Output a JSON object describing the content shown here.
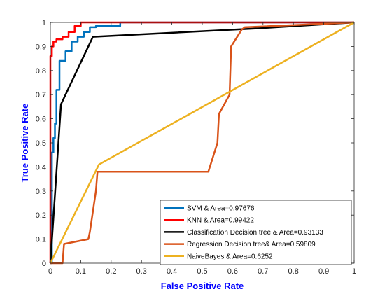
{
  "chart_data": {
    "type": "line",
    "xlabel": "False Positive Rate",
    "ylabel": "True Positive Rate",
    "xlim": [
      0,
      1
    ],
    "ylim": [
      0,
      1
    ],
    "xticks": [
      "0",
      "0.1",
      "0.2",
      "0.3",
      "0.4",
      "0.5",
      "0.6",
      "0.7",
      "0.8",
      "0.9",
      "1"
    ],
    "yticks": [
      "0",
      "0.1",
      "0.2",
      "0.3",
      "0.4",
      "0.5",
      "0.6",
      "0.7",
      "0.8",
      "0.9",
      "1"
    ],
    "grid": false,
    "legend_position": "bottom-right",
    "axis_label_color": "#0000ff",
    "series": [
      {
        "name": "SVM & Area=0.97676",
        "color": "#0072bd",
        "x": [
          0,
          0.005,
          0.005,
          0.01,
          0.01,
          0.015,
          0.015,
          0.02,
          0.02,
          0.03,
          0.03,
          0.05,
          0.05,
          0.07,
          0.07,
          0.09,
          0.09,
          0.11,
          0.11,
          0.13,
          0.13,
          0.15,
          0.15,
          0.23,
          0.23,
          1
        ],
        "y": [
          0,
          0,
          0.46,
          0.46,
          0.52,
          0.52,
          0.58,
          0.58,
          0.72,
          0.72,
          0.84,
          0.84,
          0.88,
          0.88,
          0.92,
          0.92,
          0.94,
          0.94,
          0.96,
          0.96,
          0.98,
          0.98,
          0.985,
          0.985,
          1,
          1
        ]
      },
      {
        "name": "KNN & Area=0.99422",
        "color": "#ff0000",
        "x": [
          0,
          0,
          0.005,
          0.005,
          0.01,
          0.01,
          0.02,
          0.02,
          0.04,
          0.04,
          0.06,
          0.06,
          0.08,
          0.08,
          0.1,
          0.1,
          1
        ],
        "y": [
          0,
          0.86,
          0.86,
          0.9,
          0.9,
          0.92,
          0.92,
          0.93,
          0.93,
          0.94,
          0.94,
          0.96,
          0.96,
          0.985,
          0.985,
          1,
          1
        ]
      },
      {
        "name": "Classification Decision tree & Area=0.93133",
        "color": "#000000",
        "x": [
          0,
          0.035,
          0.11,
          0.14,
          0.68,
          1
        ],
        "y": [
          0,
          0.66,
          0.86,
          0.94,
          0.975,
          1
        ]
      },
      {
        "name": "Regression Decision tree& Area=0.59809",
        "color": "#d95319",
        "x": [
          0,
          0.04,
          0.045,
          0.125,
          0.13,
          0.15,
          0.155,
          0.52,
          0.55,
          0.555,
          0.59,
          0.595,
          0.63,
          0.64,
          1
        ],
        "y": [
          0,
          0,
          0.08,
          0.1,
          0.13,
          0.3,
          0.38,
          0.38,
          0.5,
          0.62,
          0.7,
          0.9,
          0.97,
          0.98,
          1
        ]
      },
      {
        "name": "NaiveBayes & Area=0.6252",
        "color": "#edb120",
        "x": [
          0,
          0.16,
          1
        ],
        "y": [
          0,
          0.41,
          1
        ]
      }
    ]
  }
}
